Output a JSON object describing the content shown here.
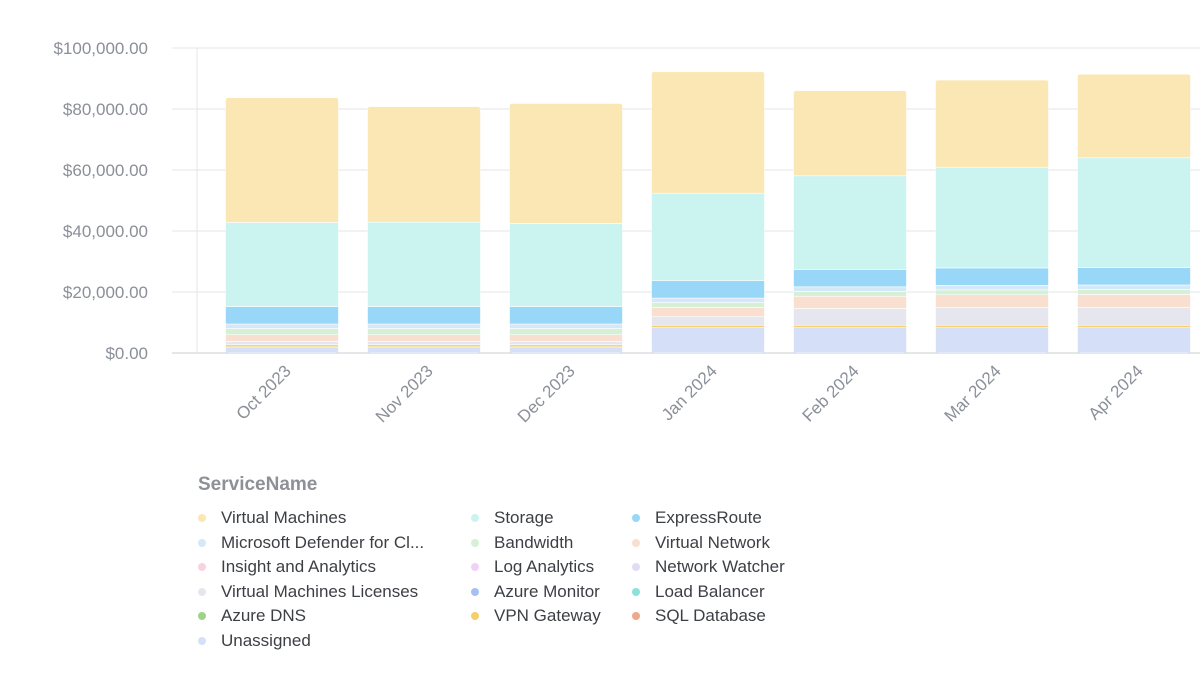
{
  "chart_data": {
    "type": "bar",
    "stacked": true,
    "categories": [
      "Oct 2023",
      "Nov 2023",
      "Dec 2023",
      "Jan 2024",
      "Feb 2024",
      "Mar 2024",
      "Apr 2024"
    ],
    "ylim": [
      0,
      100000
    ],
    "yticks": [
      0,
      20000,
      40000,
      60000,
      80000,
      100000
    ],
    "ytick_labels": [
      "$0.00",
      "$20,000.00",
      "$40,000.00",
      "$60,000.00",
      "$80,000.00",
      "$100,000.00"
    ],
    "grid": true,
    "legend_title": "ServiceName",
    "legend_position": "bottom",
    "legend": [
      {
        "name": "Virtual Machines",
        "color": "#fae7b4"
      },
      {
        "name": "Storage",
        "color": "#cbf3ef"
      },
      {
        "name": "ExpressRoute",
        "color": "#98d7f7"
      },
      {
        "name": "Microsoft Defender for Cl...",
        "color": "#d5e8f8"
      },
      {
        "name": "Bandwidth",
        "color": "#d6f0d6"
      },
      {
        "name": "Virtual Network",
        "color": "#f8dfcf"
      },
      {
        "name": "Insight and Analytics",
        "color": "#f8d3df"
      },
      {
        "name": "Log Analytics",
        "color": "#f1d2f7"
      },
      {
        "name": "Network Watcher",
        "color": "#e0dcf5"
      },
      {
        "name": "Virtual Machines Licenses",
        "color": "#e6e7ee"
      },
      {
        "name": "Azure Monitor",
        "color": "#a7c0f2"
      },
      {
        "name": "Load Balancer",
        "color": "#8ee0da"
      },
      {
        "name": "Azure DNS",
        "color": "#9ed48a"
      },
      {
        "name": "VPN Gateway",
        "color": "#f5cf6b"
      },
      {
        "name": "SQL Database",
        "color": "#eea98a"
      },
      {
        "name": "Unassigned",
        "color": "#d5e0f8"
      }
    ],
    "series": [
      {
        "name": "Unassigned",
        "color": "#d5e0f8",
        "values": [
          2000,
          2000,
          2000,
          8300,
          8300,
          8300,
          8300
        ]
      },
      {
        "name": "VPN Gateway",
        "color": "#f5cf6b",
        "values": [
          700,
          700,
          700,
          800,
          800,
          800,
          800
        ]
      },
      {
        "name": "Virtual Machines Licenses",
        "color": "#e6e7ee",
        "values": [
          1100,
          1100,
          1100,
          2800,
          5500,
          5800,
          5800
        ]
      },
      {
        "name": "Virtual Network",
        "color": "#f8dfcf",
        "values": [
          2200,
          2200,
          2200,
          3000,
          4000,
          4200,
          4300
        ]
      },
      {
        "name": "Bandwidth",
        "color": "#d6f0d6",
        "values": [
          2000,
          2000,
          2000,
          1600,
          1600,
          1600,
          1600
        ]
      },
      {
        "name": "Microsoft Defender for Cl...",
        "color": "#d5e8f8",
        "values": [
          1500,
          1500,
          1500,
          1500,
          1500,
          1500,
          1500
        ]
      },
      {
        "name": "ExpressRoute",
        "color": "#98d7f7",
        "values": [
          5700,
          5700,
          5700,
          5700,
          5700,
          5700,
          5700
        ]
      },
      {
        "name": "Storage",
        "color": "#cbf3ef",
        "values": [
          27600,
          27700,
          27300,
          28700,
          30700,
          33000,
          36000
        ]
      },
      {
        "name": "Virtual Machines",
        "color": "#fae7b4",
        "values": [
          40900,
          37900,
          39300,
          39800,
          27900,
          28600,
          27400
        ]
      }
    ]
  }
}
